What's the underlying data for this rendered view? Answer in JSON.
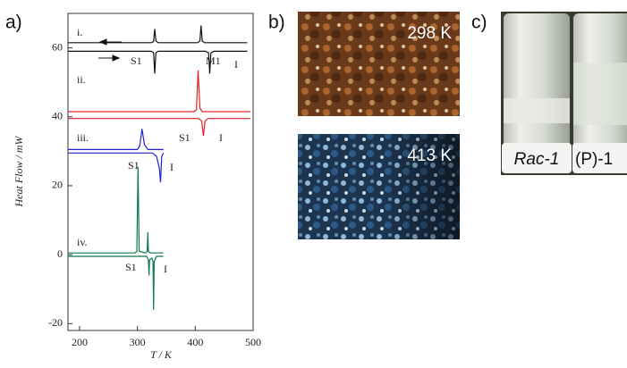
{
  "panel_labels": [
    "a)",
    "b)",
    "c)"
  ],
  "chart_data": {
    "type": "line",
    "ylabel": "Heat Flow / mW",
    "xlabel": "T / K",
    "xlim": [
      180,
      500
    ],
    "xticks": [
      200,
      300,
      400,
      500
    ],
    "ylim": [
      -22,
      70
    ],
    "yticks": [
      -20,
      0,
      20,
      40,
      60
    ],
    "series": [
      {
        "name": "i.",
        "color": "#111111",
        "labels": [
          "S1",
          "M1",
          "I"
        ],
        "cooling": {
          "x": [
            180,
            324,
            328,
            330,
            332,
            336,
            404,
            408,
            410,
            412,
            416,
            490
          ],
          "values": [
            61.5,
            61.5,
            61.8,
            65.5,
            62,
            61.5,
            61.5,
            62,
            66.5,
            62,
            61.5,
            61.5
          ]
        },
        "heating": {
          "x": [
            180,
            324,
            328,
            330,
            332,
            336,
            418,
            423,
            425,
            427,
            432,
            490
          ],
          "values": [
            59,
            59,
            58.6,
            52.5,
            58.6,
            59,
            59,
            58.5,
            52.5,
            58.5,
            59,
            59
          ]
        }
      },
      {
        "name": "ii.",
        "color": "#e0202a",
        "labels": [
          "S1",
          "I"
        ],
        "cooling": {
          "x": [
            180,
            398,
            402,
            405,
            408,
            412,
            495
          ],
          "values": [
            41.5,
            41.5,
            42,
            53.5,
            42.5,
            41.5,
            41.5
          ]
        },
        "heating": {
          "x": [
            180,
            406,
            411,
            414,
            417,
            422,
            495
          ],
          "values": [
            39.5,
            39.5,
            38.8,
            34.5,
            38.8,
            39.5,
            39.5
          ]
        }
      },
      {
        "name": "iii.",
        "color": "#2222cc",
        "labels": [
          "S1",
          "I"
        ],
        "cooling": {
          "x": [
            180,
            300,
            304,
            308,
            312,
            318,
            345
          ],
          "values": [
            30.5,
            30.5,
            31.5,
            36.5,
            32,
            30.5,
            30.5
          ]
        },
        "heating": {
          "x": [
            180,
            326,
            333,
            338,
            340,
            342,
            345
          ],
          "values": [
            29.5,
            29.5,
            28.5,
            25,
            21,
            28.5,
            29.5
          ]
        }
      },
      {
        "name": "iv.",
        "color": "#0f7a4e",
        "labels": [
          "S1",
          "I"
        ],
        "cooling": {
          "x": [
            180,
            296,
            299,
            301,
            303,
            314,
            317,
            318,
            319,
            322,
            345
          ],
          "values": [
            0.5,
            0.5,
            1,
            25.5,
            1,
            0.5,
            1,
            6.5,
            1,
            0.5,
            0.5
          ]
        },
        "heating": {
          "x": [
            180,
            316,
            319,
            320,
            321,
            325,
            327,
            328,
            329,
            333,
            345
          ],
          "values": [
            -0.5,
            -0.5,
            -1.5,
            -6,
            -1.5,
            -1,
            -2,
            -16,
            -2,
            -0.5,
            -0.5
          ]
        }
      }
    ]
  },
  "photos": {
    "temperatures": [
      "298 K",
      "413 K"
    ],
    "vials": [
      "Rac-1",
      "(P)-1"
    ]
  }
}
